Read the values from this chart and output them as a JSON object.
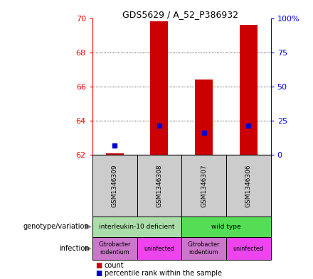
{
  "title": "GDS5629 / A_52_P386932",
  "samples": [
    "GSM1346309",
    "GSM1346308",
    "GSM1346307",
    "GSM1346306"
  ],
  "bar_base": 62,
  "count_values": [
    62.1,
    69.8,
    66.4,
    69.6
  ],
  "percentile_values": [
    62.55,
    63.7,
    63.3,
    63.7
  ],
  "ylim_left": [
    62,
    70
  ],
  "ylim_right": [
    0,
    100
  ],
  "yticks_left": [
    62,
    64,
    66,
    68,
    70
  ],
  "yticks_right": [
    0,
    25,
    50,
    75,
    100
  ],
  "ytick_labels_right": [
    "0",
    "25",
    "50",
    "75",
    "100%"
  ],
  "bar_color": "#cc0000",
  "dot_color": "#0000cc",
  "grid_color": "#000000",
  "bar_width": 0.4,
  "genotype_groups": [
    {
      "text": "interleukin-10 deficient",
      "cols": [
        0,
        1
      ],
      "color": "#aaddaa"
    },
    {
      "text": "wild type",
      "cols": [
        2,
        3
      ],
      "color": "#55dd55"
    }
  ],
  "infection_groups": [
    {
      "text": "Citrobacter\nrodentium",
      "cols": [
        0
      ],
      "color": "#cc77cc"
    },
    {
      "text": "uninfected",
      "cols": [
        1
      ],
      "color": "#ee44ee"
    },
    {
      "text": "Citrobacter\nrodentium",
      "cols": [
        2
      ],
      "color": "#cc77cc"
    },
    {
      "text": "uninfected",
      "cols": [
        3
      ],
      "color": "#ee44ee"
    }
  ],
  "legend_count_color": "#cc0000",
  "legend_percentile_color": "#0000cc"
}
